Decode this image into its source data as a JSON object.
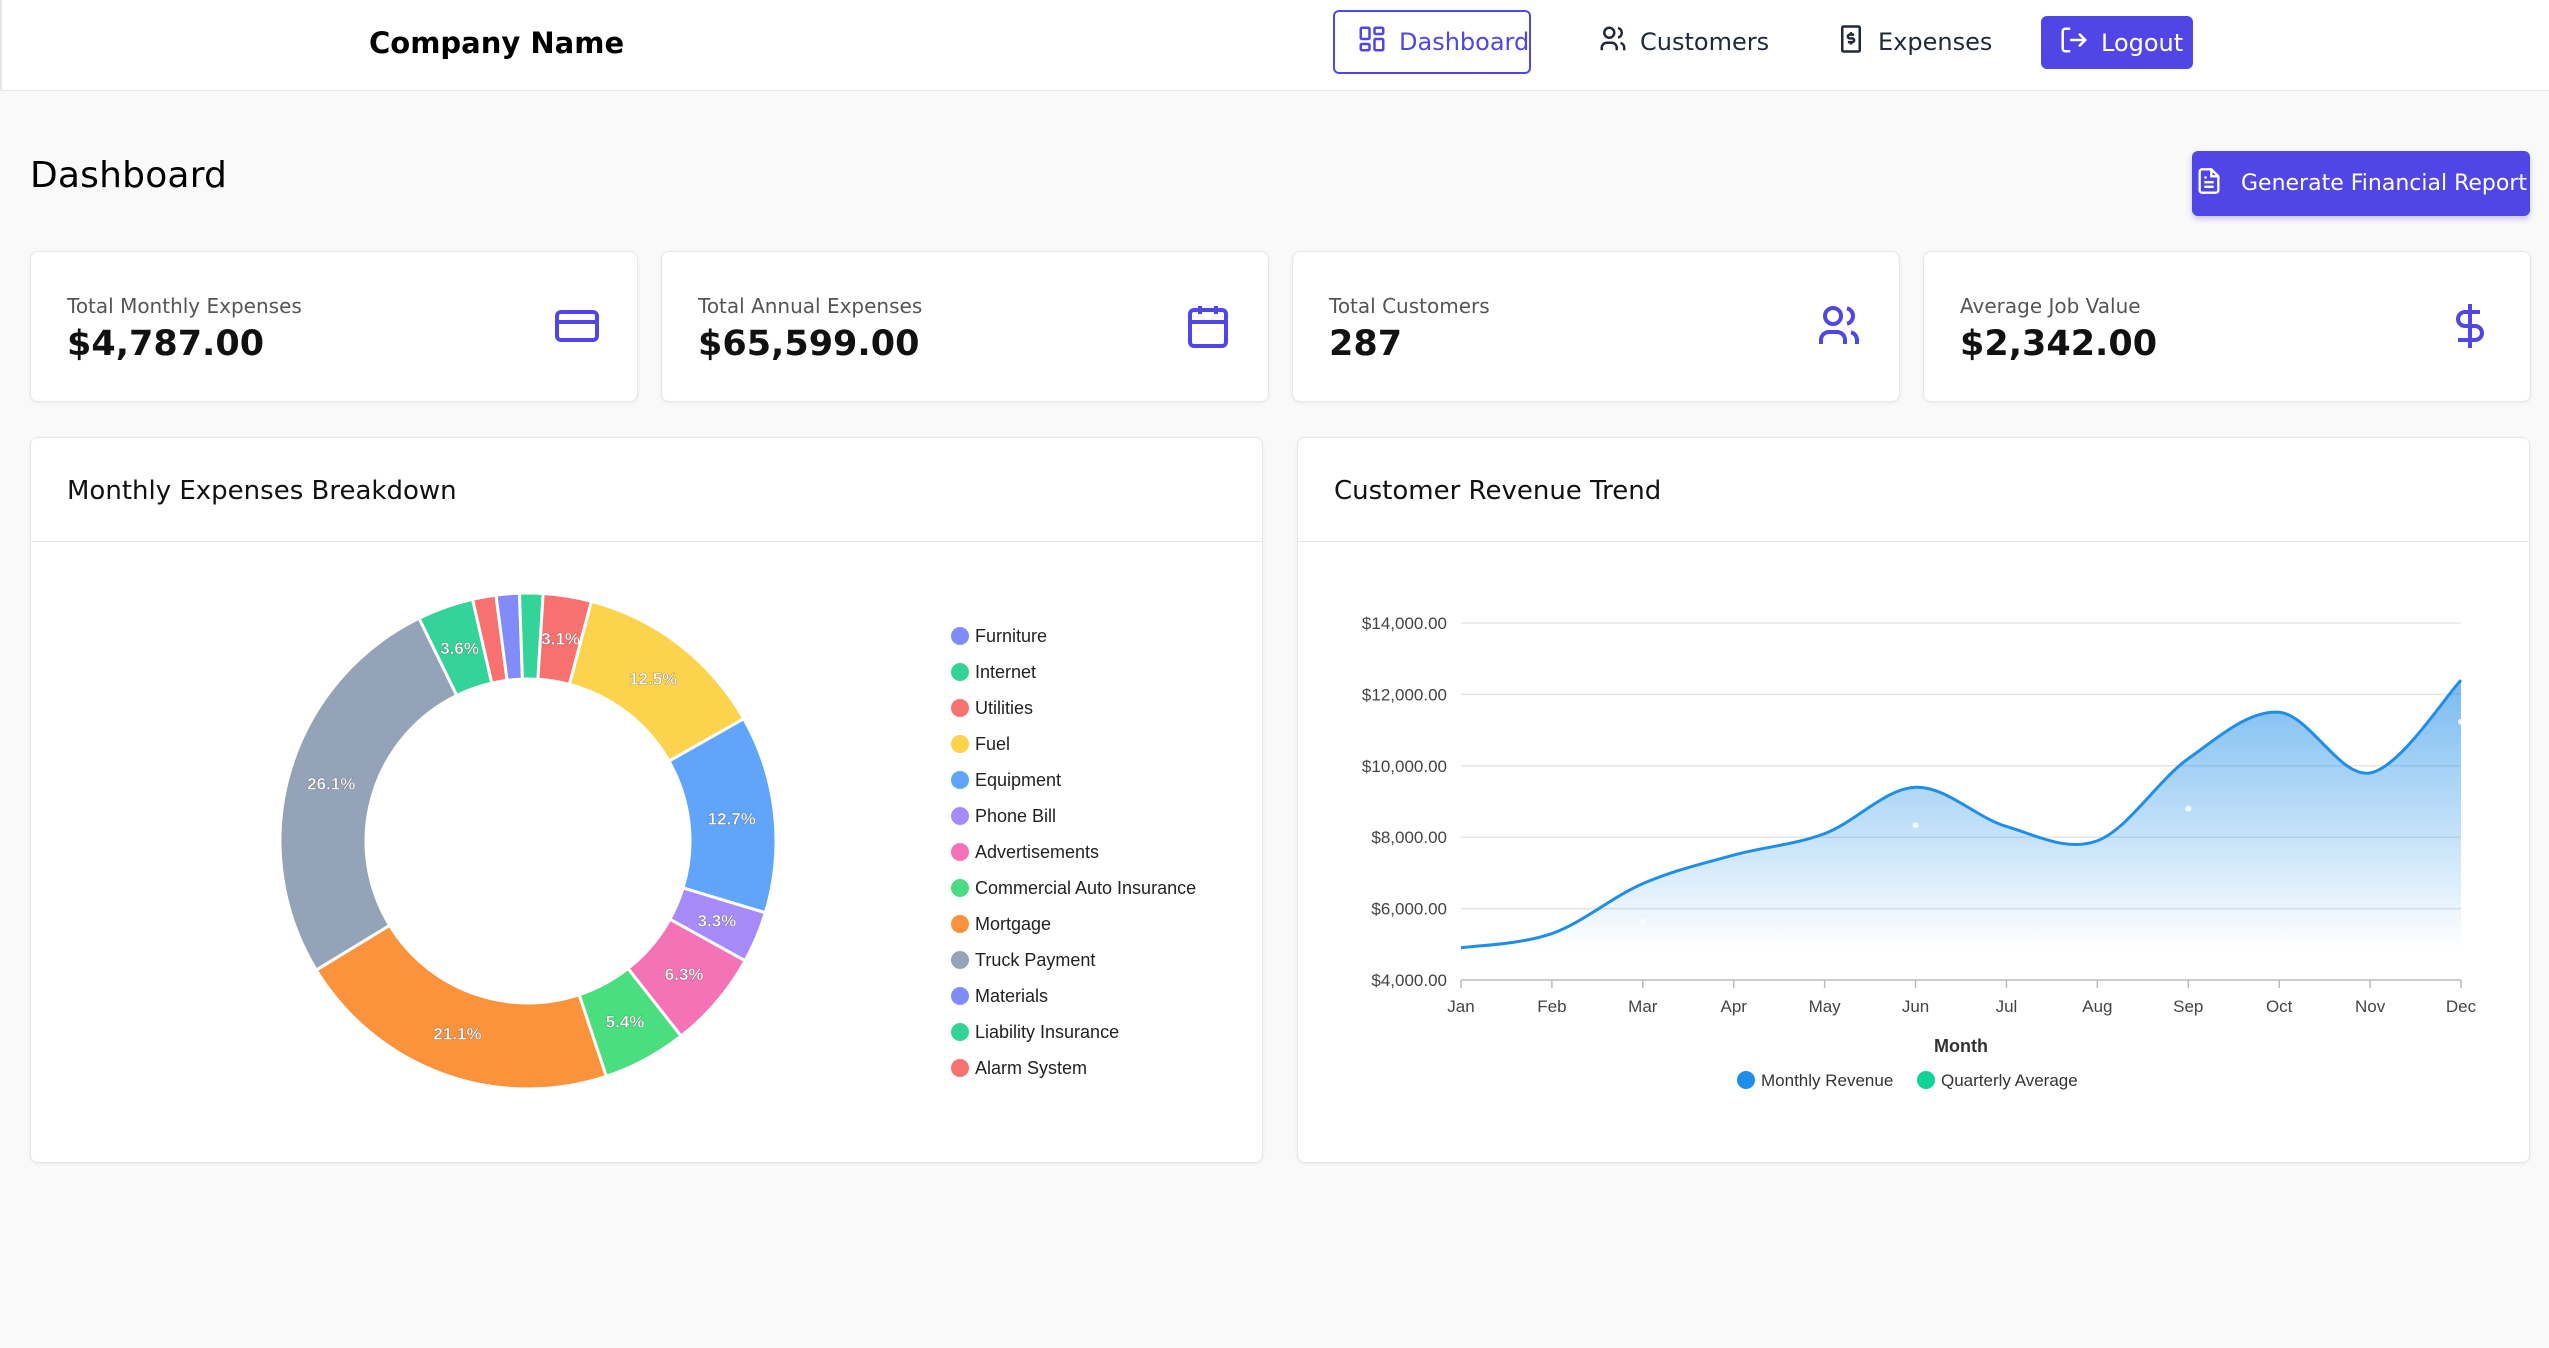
{
  "navbar": {
    "brand": "Company Name",
    "items": [
      {
        "label": "Dashboard",
        "icon": "grid-icon",
        "active": true
      },
      {
        "label": "Customers",
        "icon": "users-icon"
      },
      {
        "label": "Expenses",
        "icon": "dollar-file-icon"
      }
    ],
    "logout_label": "Logout"
  },
  "page": {
    "title": "Dashboard",
    "report_button": "Generate Financial Report"
  },
  "stats": [
    {
      "label": "Total Monthly Expenses",
      "value": "$4,787.00",
      "icon": "credit-card-icon"
    },
    {
      "label": "Total Annual Expenses",
      "value": "$65,599.00",
      "icon": "calendar-icon"
    },
    {
      "label": "Total Customers",
      "value": "287",
      "icon": "users-icon"
    },
    {
      "label": "Average Job Value",
      "value": "$2,342.00",
      "icon": "dollar-icon"
    }
  ],
  "colors": {
    "accent": "#4f46e5",
    "revenue_line": "#1f8ee8"
  },
  "expenses_panel": {
    "title": "Monthly Expenses Breakdown"
  },
  "revenue_panel": {
    "title": "Customer Revenue Trend"
  },
  "chart_data": [
    {
      "type": "pie",
      "donut": true,
      "title": "Monthly Expenses Breakdown",
      "legend_position": "right",
      "slices": [
        {
          "name": "Furniture",
          "value": 1.5,
          "label": "",
          "color": "#818cf8"
        },
        {
          "name": "Internet",
          "value": 1.5,
          "label": "",
          "color": "#34d399"
        },
        {
          "name": "Utilities",
          "value": 3.1,
          "label": "3.1%",
          "color": "#f87171"
        },
        {
          "name": "Fuel",
          "value": 12.5,
          "label": "12.5%",
          "color": "#fcd34d"
        },
        {
          "name": "Equipment",
          "value": 12.7,
          "label": "12.7%",
          "color": "#60a5fa"
        },
        {
          "name": "Phone Bill",
          "value": 3.3,
          "label": "3.3%",
          "color": "#a78bfa"
        },
        {
          "name": "Advertisements",
          "value": 6.3,
          "label": "6.3%",
          "color": "#f472b6"
        },
        {
          "name": "Commercial Auto Insurance",
          "value": 5.4,
          "label": "5.4%",
          "color": "#4ade80"
        },
        {
          "name": "Mortgage",
          "value": 21.1,
          "label": "21.1%",
          "color": "#fb923c"
        },
        {
          "name": "Truck Payment",
          "value": 26.1,
          "label": "26.1%",
          "color": "#94a3b8"
        },
        {
          "name": "Materials",
          "value": 0,
          "label": "",
          "color": "#818cf8"
        },
        {
          "name": "Liability Insurance",
          "value": 3.6,
          "label": "3.6%",
          "color": "#34d399"
        },
        {
          "name": "Alarm System",
          "value": 1.5,
          "label": "",
          "color": "#f87171"
        }
      ]
    },
    {
      "type": "area",
      "title": "Customer Revenue Trend",
      "xlabel": "Month",
      "ylabel": "",
      "categories": [
        "Jan",
        "Feb",
        "Mar",
        "Apr",
        "May",
        "Jun",
        "Jul",
        "Aug",
        "Sep",
        "Oct",
        "Nov",
        "Dec"
      ],
      "ylim": [
        4000,
        14000
      ],
      "yticks": [
        "$14,000.00",
        "$12,000.00",
        "$10,000.00",
        "$8,000.00",
        "$6,000.00",
        "$4,000.00"
      ],
      "grid": true,
      "legend_position": "bottom",
      "series": [
        {
          "name": "Monthly Revenue",
          "color": "#1f8ee8",
          "values": [
            4900,
            5300,
            6700,
            7500,
            8100,
            9400,
            8300,
            7900,
            10200,
            11500,
            9800,
            12400
          ]
        },
        {
          "name": "Quarterly Average",
          "color": "#10d39a",
          "values": [
            null,
            null,
            5633,
            null,
            null,
            8333,
            null,
            null,
            8800,
            null,
            null,
            11233
          ]
        }
      ]
    }
  ]
}
